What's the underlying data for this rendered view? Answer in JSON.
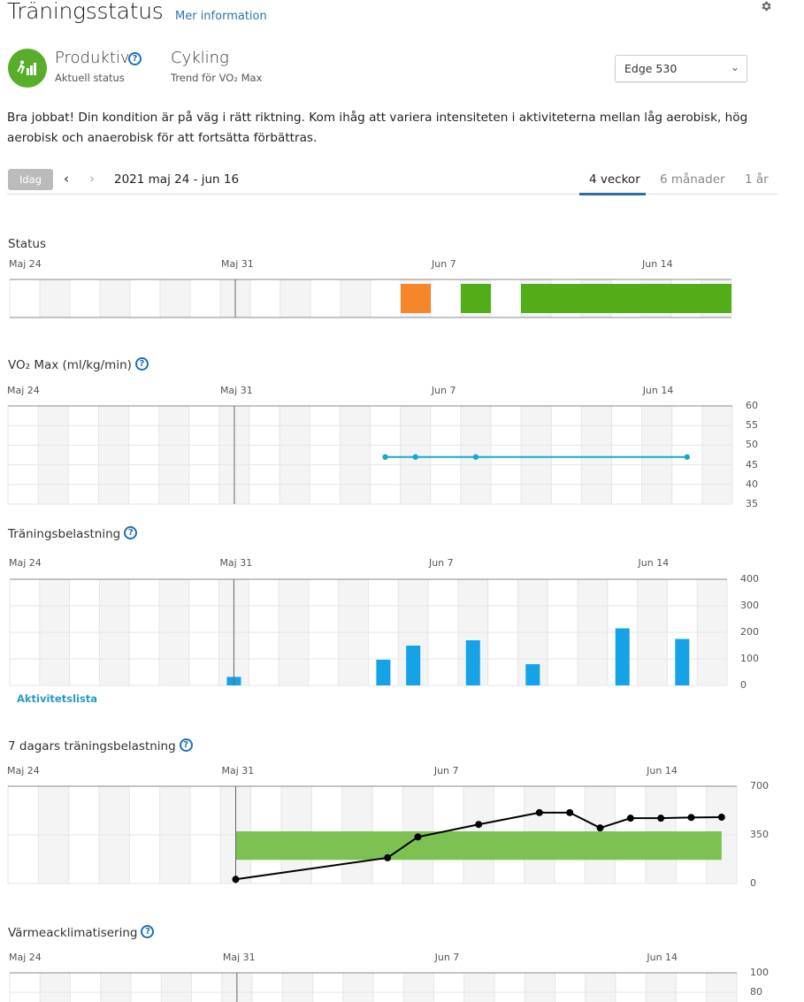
{
  "header": {
    "title": "Träningsstatus",
    "more_info_link": "Mer information",
    "settings_icon": "gear-icon"
  },
  "status_summary": {
    "status_label": "Produktiv",
    "status_sublabel": "Aktuell status",
    "status_icon": "runner-bars-icon",
    "status_color": "#58ad2a",
    "sport_label": "Cykling",
    "sport_sublabel": "Trend för VO₂ Max"
  },
  "device_select": {
    "selected": "Edge 530"
  },
  "message": "Bra jobbat! Din kondition är på väg i rätt riktning. Kom ihåg att variera intensiteten i aktiviteterna mellan låg aerobisk, hög aerobisk och anaerobisk för att fortsätta förbättras.",
  "date_nav": {
    "today_label": "Idag",
    "range_label": "2021 maj 24 - jun 16"
  },
  "range_tabs": [
    {
      "label": "4 veckor",
      "active": true
    },
    {
      "label": "6 månader",
      "active": false
    },
    {
      "label": "1 år",
      "active": false
    }
  ],
  "date_labels": [
    {
      "day_index": 0,
      "text": "Maj 24"
    },
    {
      "day_index": 7,
      "text": "Maj 31"
    },
    {
      "day_index": 14,
      "text": "Jun 7"
    },
    {
      "day_index": 21,
      "text": "Jun 14"
    }
  ],
  "aktivitetslista_link": "Aktivitetslista",
  "chart_data": [
    {
      "type": "table",
      "title": "Status",
      "days": 24,
      "start_date": "Maj 24",
      "marker_day_index": 7,
      "segments": [
        {
          "start_day": 13,
          "end_day": 13,
          "status": "Unproductive",
          "color": "#f5862a"
        },
        {
          "start_day": 15,
          "end_day": 15,
          "status": "Productive",
          "color": "#52ad18"
        },
        {
          "start_day": 17,
          "end_day": 23,
          "status": "Productive",
          "color": "#52ad18"
        }
      ]
    },
    {
      "type": "line",
      "title": "VO₂ Max (ml/kg/min)",
      "days": 24,
      "marker_day_index": 7,
      "ylim": [
        35,
        60
      ],
      "yticks": [
        60,
        55,
        50,
        45,
        40,
        35
      ],
      "color": "#1aa8c9",
      "points": [
        {
          "day": 12,
          "value": 47
        },
        {
          "day": 13,
          "value": 47
        },
        {
          "day": 15,
          "value": 47
        },
        {
          "day": 22,
          "value": 47
        }
      ]
    },
    {
      "type": "bar",
      "title": "Träningsbelastning",
      "days": 24,
      "marker_day_index": 7,
      "ylim": [
        0,
        400
      ],
      "yticks": [
        400,
        300,
        200,
        100,
        0
      ],
      "color": "#16a2e6",
      "bars": [
        {
          "day": 7,
          "values": [
            32
          ]
        },
        {
          "day": 12,
          "values": [
            45,
            55
          ]
        },
        {
          "day": 13,
          "values": [
            150
          ]
        },
        {
          "day": 15,
          "values": [
            170
          ]
        },
        {
          "day": 17,
          "values": [
            80
          ]
        },
        {
          "day": 20,
          "values": [
            215
          ]
        },
        {
          "day": 22,
          "values": [
            175
          ]
        }
      ]
    },
    {
      "type": "line",
      "title": "7 dagars träningsbelastning",
      "days": 24,
      "marker_day_index": 7,
      "ylim": [
        0,
        700
      ],
      "yticks": [
        700,
        350,
        0
      ],
      "optimal_band": {
        "low": 170,
        "high": 375,
        "start_day": 7,
        "end_day": 23,
        "color": "#7cc152"
      },
      "line_color": "#000000",
      "points": [
        {
          "day": 7,
          "value": 30
        },
        {
          "day": 12,
          "value": 185
        },
        {
          "day": 13,
          "value": 335
        },
        {
          "day": 15,
          "value": 425
        },
        {
          "day": 17,
          "value": 510
        },
        {
          "day": 18,
          "value": 510
        },
        {
          "day": 19,
          "value": 400
        },
        {
          "day": 20,
          "value": 470
        },
        {
          "day": 21,
          "value": 470
        },
        {
          "day": 22,
          "value": 475
        },
        {
          "day": 23,
          "value": 477
        }
      ]
    },
    {
      "type": "line",
      "title": "Värmeacklimatisering",
      "days": 24,
      "marker_day_index": 7,
      "ylim": [
        0,
        100
      ],
      "yticks": [
        100,
        80
      ],
      "points": []
    }
  ]
}
